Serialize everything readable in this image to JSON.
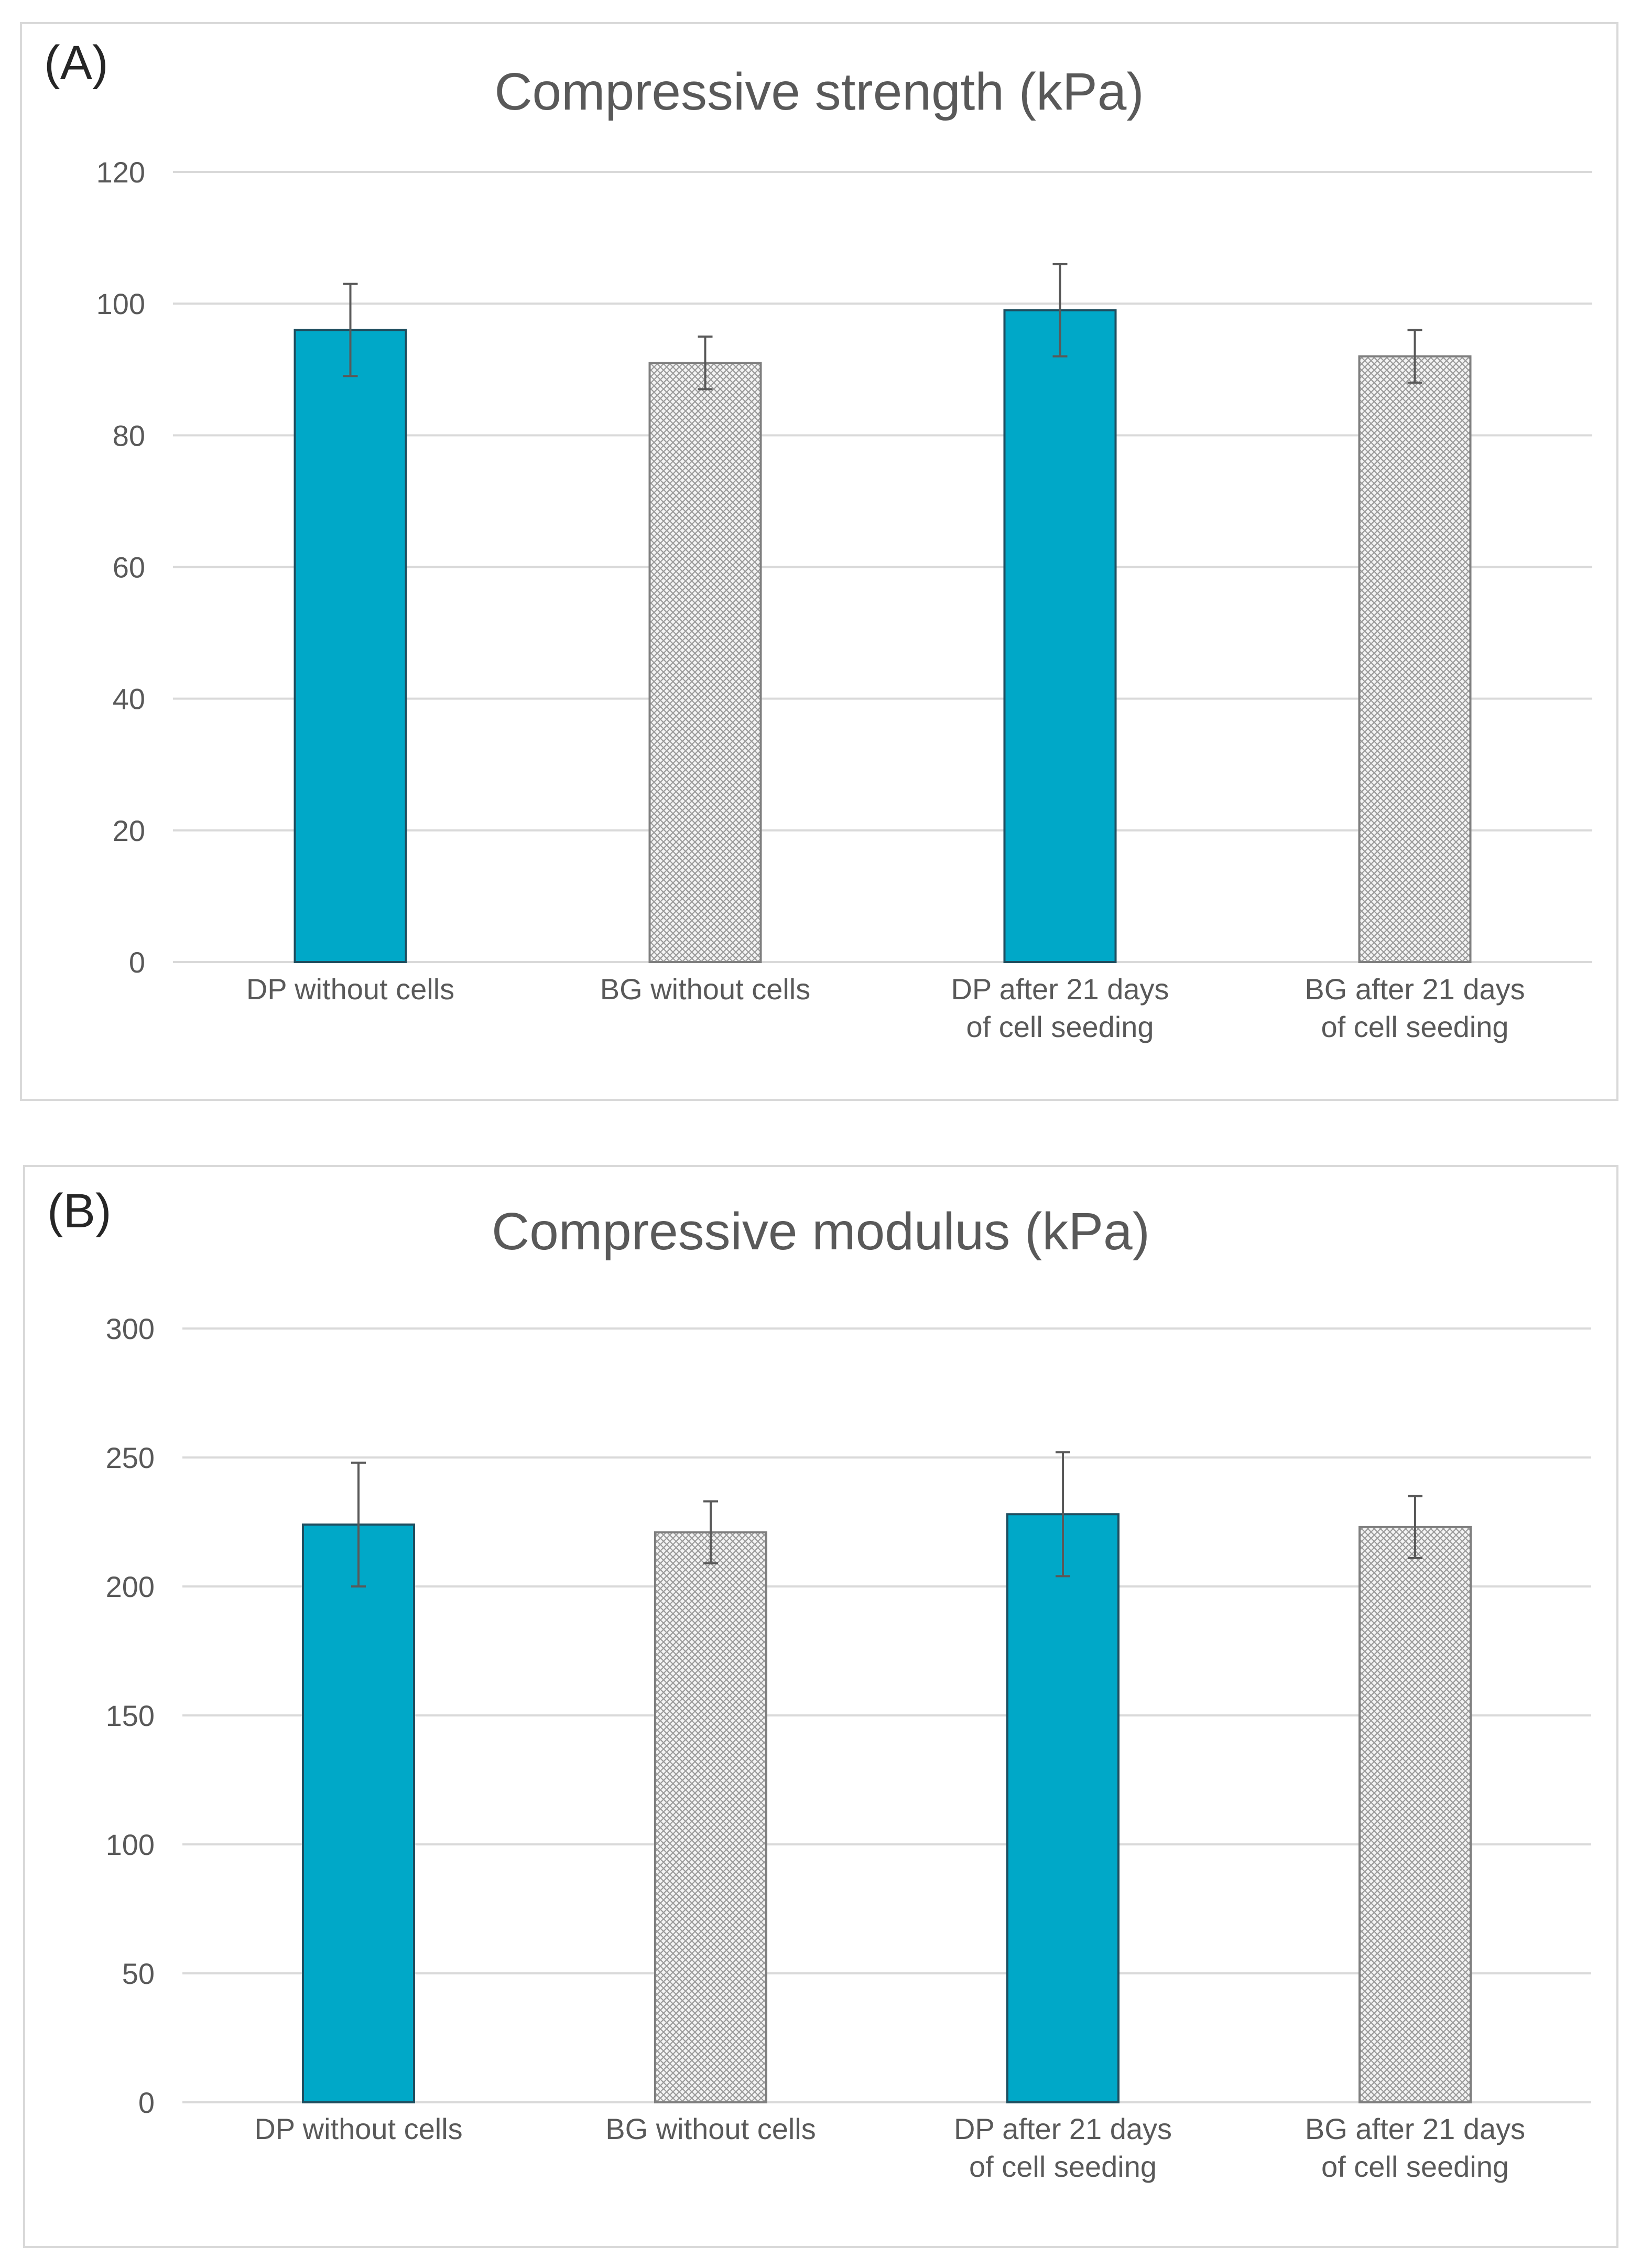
{
  "chart_data": [
    {
      "type": "bar",
      "panel_label": "(A)",
      "title": "Compressive strength (kPa)",
      "xlabel": "",
      "ylabel": "",
      "ylim": [
        0,
        120
      ],
      "yticks": [
        0,
        20,
        40,
        60,
        80,
        100,
        120
      ],
      "grid": true,
      "categories": [
        [
          "DP without cells"
        ],
        [
          "BG without cells"
        ],
        [
          "DP after 21 days",
          "of cell seeding"
        ],
        [
          "BG after 21 days",
          "of cell seeding"
        ]
      ],
      "values": [
        96,
        91,
        99,
        92
      ],
      "errors": [
        7,
        4,
        7,
        4
      ],
      "fills": [
        "solid",
        "hatch",
        "solid",
        "hatch"
      ]
    },
    {
      "type": "bar",
      "panel_label": "(B)",
      "title": "Compressive modulus (kPa)",
      "xlabel": "",
      "ylabel": "",
      "ylim": [
        0,
        300
      ],
      "yticks": [
        0,
        50,
        100,
        150,
        200,
        250,
        300
      ],
      "grid": true,
      "categories": [
        [
          "DP without cells"
        ],
        [
          "BG without cells"
        ],
        [
          "DP after 21 days",
          "of cell seeding"
        ],
        [
          "BG after 21 days",
          "of cell seeding"
        ]
      ],
      "values": [
        224,
        221,
        228,
        223
      ],
      "errors": [
        24,
        12,
        24,
        12
      ],
      "fills": [
        "solid",
        "hatch",
        "solid",
        "hatch"
      ]
    }
  ],
  "colors": {
    "solid_bar": "#00a8c8",
    "solid_border": "#1f4e5f",
    "hatch_border": "#7f7f7f",
    "grid": "#d9d9d9",
    "error_bar": "#595959"
  }
}
